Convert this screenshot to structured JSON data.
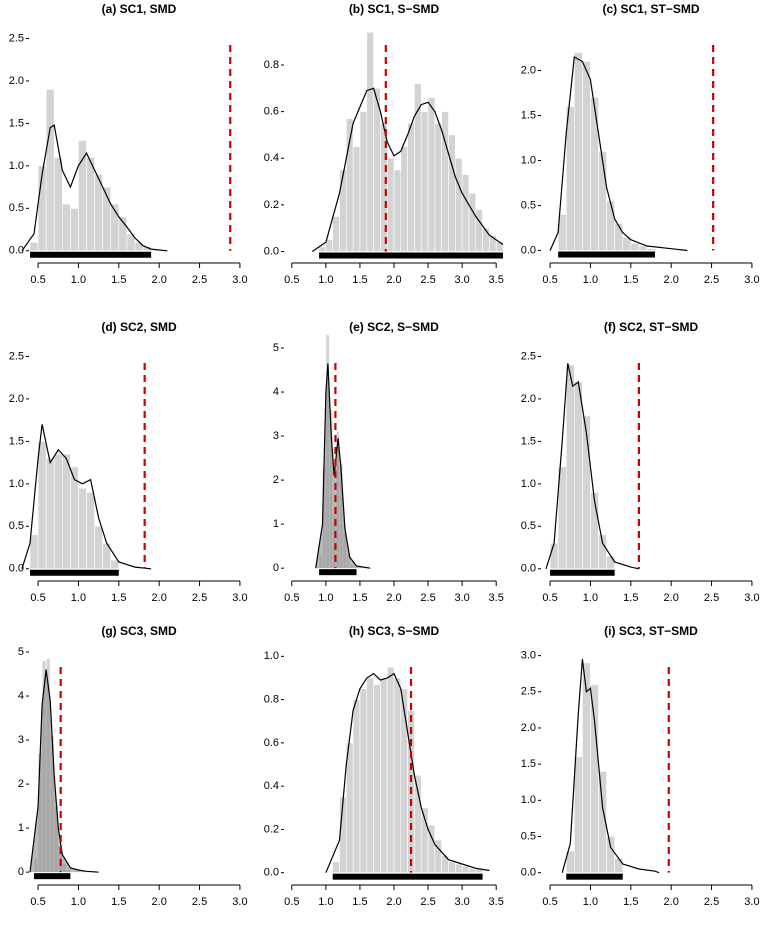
{
  "chart_data": [
    {
      "type": "histogram",
      "title": "(a) SC1, SMD",
      "bins": [
        0.4,
        0.5,
        0.6,
        0.7,
        0.8,
        0.9,
        1.0,
        1.1,
        1.2,
        1.3,
        1.4,
        1.5,
        1.6,
        1.7,
        1.8,
        1.9
      ],
      "values": [
        0.1,
        1.0,
        1.9,
        1.1,
        0.55,
        0.5,
        1.3,
        1.1,
        0.9,
        0.75,
        0.55,
        0.4,
        0.2,
        0.1,
        0.05
      ],
      "color": "#d3d3d3",
      "density": {
        "x": [
          0.3,
          0.45,
          0.55,
          0.65,
          0.7,
          0.8,
          0.9,
          1.0,
          1.1,
          1.2,
          1.3,
          1.4,
          1.5,
          1.6,
          1.7,
          1.8,
          1.9,
          2.1
        ],
        "y": [
          0,
          0.2,
          0.9,
          1.45,
          1.48,
          0.95,
          0.75,
          1.0,
          1.15,
          0.95,
          0.75,
          0.55,
          0.4,
          0.28,
          0.15,
          0.06,
          0.02,
          0
        ],
        "color": "#000000"
      },
      "reference_line": 2.88,
      "reference_color": "#cc0000",
      "xlim": [
        0.4,
        3.1
      ],
      "xticks": [
        0.5,
        {
          "value": 1,
          "label": "1.0"
        },
        1.5,
        {
          "value": 2,
          "label": "2.0"
        },
        2.5,
        {
          "value": 3,
          "label": "3.0"
        }
      ],
      "ylim": [
        -0.05,
        2.6
      ],
      "yticks": [
        {
          "value": 0,
          "label": "0.0"
        },
        0.5,
        {
          "value": 1,
          "label": "1.0"
        },
        1.5,
        {
          "value": 2,
          "label": "2.0"
        },
        2.5
      ]
    },
    {
      "type": "histogram",
      "title": "(b) SC1, S−SMD",
      "bins": [
        0.9,
        1.0,
        1.1,
        1.2,
        1.3,
        1.4,
        1.5,
        1.6,
        1.7,
        1.8,
        1.9,
        2.0,
        2.1,
        2.2,
        2.3,
        2.4,
        2.5,
        2.6,
        2.7,
        2.8,
        2.9,
        3.0,
        3.1,
        3.2,
        3.3,
        3.4,
        3.5,
        3.6
      ],
      "values": [
        0.02,
        0.05,
        0.15,
        0.35,
        0.57,
        0.45,
        0.6,
        0.94,
        0.7,
        0.55,
        0.4,
        0.35,
        0.45,
        0.55,
        0.72,
        0.6,
        0.66,
        0.55,
        0.6,
        0.5,
        0.4,
        0.33,
        0.25,
        0.18,
        0.1,
        0.07,
        0.04
      ],
      "color": "#d3d3d3",
      "density": {
        "x": [
          0.8,
          1.0,
          1.2,
          1.4,
          1.6,
          1.7,
          1.8,
          1.9,
          2.0,
          2.1,
          2.2,
          2.3,
          2.4,
          2.5,
          2.6,
          2.7,
          2.8,
          2.9,
          3.0,
          3.2,
          3.4,
          3.6
        ],
        "y": [
          0,
          0.04,
          0.25,
          0.55,
          0.69,
          0.7,
          0.6,
          0.47,
          0.41,
          0.43,
          0.5,
          0.58,
          0.63,
          0.64,
          0.6,
          0.52,
          0.42,
          0.32,
          0.25,
          0.15,
          0.07,
          0.03
        ],
        "color": "#000000"
      },
      "reference_line": 1.88,
      "reference_color": "#cc0000",
      "xlim": [
        0.4,
        3.6
      ],
      "xticks": [
        0.5,
        {
          "value": 1,
          "label": "1.0"
        },
        1.5,
        {
          "value": 2,
          "label": "2.0"
        },
        2.5,
        {
          "value": 3,
          "label": "3.0"
        },
        3.5
      ],
      "ylim": [
        -0.015,
        0.95
      ],
      "yticks": [
        {
          "value": 0,
          "label": "0.0"
        },
        0.2,
        0.4,
        0.6,
        0.8
      ]
    },
    {
      "type": "histogram",
      "title": "(c) SC1, ST−SMD",
      "bins": [
        0.6,
        0.7,
        0.8,
        0.9,
        1.0,
        1.1,
        1.2,
        1.3,
        1.4,
        1.5,
        1.6,
        1.7,
        1.8
      ],
      "values": [
        0.4,
        1.6,
        2.2,
        2.1,
        1.7,
        1.1,
        0.55,
        0.3,
        0.15,
        0.08,
        0.05,
        0.02
      ],
      "color": "#d3d3d3",
      "density": {
        "x": [
          0.5,
          0.6,
          0.7,
          0.8,
          0.9,
          1.0,
          1.1,
          1.2,
          1.3,
          1.4,
          1.5,
          1.7,
          2.0,
          2.2
        ],
        "y": [
          0,
          0.2,
          1.3,
          2.15,
          2.1,
          1.9,
          1.3,
          0.7,
          0.35,
          0.2,
          0.12,
          0.05,
          0.02,
          0
        ],
        "color": "#000000"
      },
      "reference_line": 2.52,
      "reference_color": "#cc0000",
      "xlim": [
        0.4,
        3.1
      ],
      "xticks": [
        0.5,
        {
          "value": 1,
          "label": "1.0"
        },
        1.5,
        {
          "value": 2,
          "label": "2.0"
        },
        2.5,
        {
          "value": 3,
          "label": "3.0"
        }
      ],
      "ylim": [
        -0.05,
        2.45
      ],
      "yticks": [
        {
          "value": 0,
          "label": "0.0"
        },
        0.5,
        {
          "value": 1,
          "label": "1.0"
        },
        1.5,
        {
          "value": 2,
          "label": "2.0"
        }
      ]
    },
    {
      "type": "histogram",
      "title": "(d) SC2, SMD",
      "bins": [
        0.4,
        0.5,
        0.6,
        0.7,
        0.8,
        0.9,
        1.0,
        1.1,
        1.2,
        1.3,
        1.4,
        1.5
      ],
      "values": [
        0.4,
        1.5,
        1.3,
        1.35,
        1.35,
        1.2,
        0.95,
        0.9,
        0.5,
        0.3,
        0.1
      ],
      "color": "#d3d3d3",
      "density": {
        "x": [
          0.3,
          0.4,
          0.5,
          0.55,
          0.65,
          0.75,
          0.85,
          0.95,
          1.05,
          1.15,
          1.25,
          1.35,
          1.5,
          1.7,
          1.9
        ],
        "y": [
          0,
          0.3,
          1.3,
          1.7,
          1.25,
          1.4,
          1.3,
          1.05,
          1.0,
          1.05,
          0.6,
          0.3,
          0.08,
          0.02,
          0
        ],
        "color": "#000000"
      },
      "reference_line": 1.82,
      "reference_color": "#cc0000",
      "xlim": [
        0.4,
        3.1
      ],
      "xticks": [
        0.5,
        {
          "value": 1,
          "label": "1.0"
        },
        1.5,
        {
          "value": 2,
          "label": "2.0"
        },
        2.5,
        {
          "value": 3,
          "label": "3.0"
        }
      ],
      "ylim": [
        -0.05,
        2.6
      ],
      "yticks": [
        {
          "value": 0,
          "label": "0.0"
        },
        0.5,
        {
          "value": 1,
          "label": "1.0"
        },
        1.5,
        {
          "value": 2,
          "label": "2.0"
        },
        2.5
      ]
    },
    {
      "type": "histogram",
      "title": "(e) SC2, S−SMD",
      "bins": [
        0.9,
        0.95,
        1.0,
        1.05,
        1.1,
        1.15,
        1.2,
        1.25,
        1.3,
        1.35,
        1.4,
        1.45
      ],
      "values": [
        0.3,
        2.3,
        5.3,
        3.6,
        1.2,
        3.1,
        2.4,
        0.8,
        0.3,
        0.1,
        0.05
      ],
      "color": "#d3d3d3",
      "density": {
        "x": [
          0.85,
          0.95,
          1.0,
          1.03,
          1.08,
          1.12,
          1.18,
          1.22,
          1.28,
          1.35,
          1.45,
          1.65
        ],
        "y": [
          0,
          1.0,
          4.0,
          4.65,
          3.0,
          2.1,
          2.95,
          2.3,
          0.9,
          0.25,
          0.05,
          0
        ],
        "color": "#000000",
        "fill": "#8c8c8c"
      },
      "reference_line": 1.14,
      "reference_color": "#cc0000",
      "xlim": [
        0.4,
        3.6
      ],
      "xticks": [
        0.5,
        {
          "value": 1,
          "label": "1.0"
        },
        1.5,
        {
          "value": 2,
          "label": "2.0"
        },
        2.5,
        {
          "value": 3,
          "label": "3.0"
        },
        3.5
      ],
      "ylim": [
        -0.11,
        5.0
      ],
      "yticks": [
        0,
        1,
        2,
        3,
        4,
        5
      ]
    },
    {
      "type": "histogram",
      "title": "(f) SC2, ST−SMD",
      "bins": [
        0.5,
        0.6,
        0.7,
        0.8,
        0.9,
        1.0,
        1.1,
        1.2,
        1.3
      ],
      "values": [
        0.3,
        1.2,
        2.4,
        2.2,
        1.8,
        0.9,
        0.4,
        0.15
      ],
      "color": "#d3d3d3",
      "density": {
        "x": [
          0.45,
          0.55,
          0.65,
          0.72,
          0.78,
          0.85,
          0.95,
          1.05,
          1.15,
          1.3,
          1.5,
          1.6
        ],
        "y": [
          0,
          0.3,
          1.5,
          2.42,
          2.15,
          2.2,
          1.6,
          0.8,
          0.3,
          0.08,
          0.02,
          0
        ],
        "color": "#000000"
      },
      "reference_line": 1.6,
      "reference_color": "#cc0000",
      "xlim": [
        0.4,
        3.1
      ],
      "xticks": [
        0.5,
        {
          "value": 1,
          "label": "1.0"
        },
        1.5,
        {
          "value": 2,
          "label": "2.0"
        },
        2.5,
        {
          "value": 3,
          "label": "3.0"
        }
      ],
      "ylim": [
        -0.05,
        2.6
      ],
      "yticks": [
        {
          "value": 0,
          "label": "0.0"
        },
        0.5,
        {
          "value": 1,
          "label": "1.0"
        },
        1.5,
        {
          "value": 2,
          "label": "2.0"
        },
        2.5
      ]
    },
    {
      "type": "histogram",
      "title": "(g) SC3, SMD",
      "bins": [
        0.45,
        0.5,
        0.55,
        0.6,
        0.65,
        0.7,
        0.75,
        0.8,
        0.85,
        0.9
      ],
      "values": [
        0.3,
        2.7,
        4.8,
        4.85,
        3.1,
        1.5,
        0.6,
        0.2,
        0.05
      ],
      "color": "#d3d3d3",
      "density": {
        "x": [
          0.4,
          0.5,
          0.55,
          0.6,
          0.65,
          0.7,
          0.75,
          0.8,
          0.9,
          1.0,
          1.1,
          1.25
        ],
        "y": [
          0,
          1.5,
          3.8,
          4.6,
          3.9,
          2.2,
          1.0,
          0.4,
          0.1,
          0.05,
          0.02,
          0
        ],
        "color": "#000000",
        "fill": "#8c8c8c"
      },
      "reference_line": 0.78,
      "reference_color": "#cc0000",
      "xlim": [
        0.4,
        3.1
      ],
      "xticks": [
        0.5,
        {
          "value": 1,
          "label": "1.0"
        },
        1.5,
        {
          "value": 2,
          "label": "2.0"
        },
        2.5,
        {
          "value": 3,
          "label": "3.0"
        }
      ],
      "ylim": [
        -0.11,
        5.0
      ],
      "yticks": [
        0,
        1,
        2,
        3,
        4,
        5
      ]
    },
    {
      "type": "histogram",
      "title": "(h) SC3, S−SMD",
      "bins": [
        1.1,
        1.2,
        1.3,
        1.4,
        1.5,
        1.6,
        1.7,
        1.8,
        1.9,
        2.0,
        2.1,
        2.2,
        2.3,
        2.4,
        2.5,
        2.6,
        2.7,
        2.8,
        2.9,
        3.0,
        3.1,
        3.2,
        3.3
      ],
      "values": [
        0.05,
        0.35,
        0.6,
        0.8,
        0.85,
        0.9,
        0.87,
        0.9,
        0.95,
        0.9,
        0.85,
        0.75,
        0.45,
        0.3,
        0.22,
        0.15,
        0.08,
        0.05,
        0.04,
        0.03,
        0.02,
        0.02
      ],
      "color": "#d3d3d3",
      "density": {
        "x": [
          1.0,
          1.2,
          1.3,
          1.4,
          1.5,
          1.6,
          1.7,
          1.8,
          1.9,
          2.0,
          2.1,
          2.2,
          2.3,
          2.4,
          2.5,
          2.6,
          2.8,
          3.0,
          3.2,
          3.4
        ],
        "y": [
          0,
          0.15,
          0.5,
          0.75,
          0.85,
          0.9,
          0.92,
          0.89,
          0.9,
          0.92,
          0.85,
          0.65,
          0.45,
          0.3,
          0.2,
          0.13,
          0.06,
          0.04,
          0.02,
          0.01
        ],
        "color": "#000000"
      },
      "reference_line": 2.25,
      "reference_color": "#cc0000",
      "xlim": [
        0.4,
        3.6
      ],
      "xticks": [
        0.5,
        {
          "value": 1,
          "label": "1.0"
        },
        1.5,
        {
          "value": 2,
          "label": "2.0"
        },
        2.5,
        {
          "value": 3,
          "label": "3.0"
        },
        3.5
      ],
      "ylim": [
        -0.02,
        1.02
      ],
      "yticks": [
        {
          "value": 0,
          "label": "0.0"
        },
        0.2,
        0.4,
        0.6,
        0.8,
        {
          "value": 1,
          "label": "1.0"
        }
      ]
    },
    {
      "type": "histogram",
      "title": "(i) SC3, ST−SMD",
      "bins": [
        0.7,
        0.8,
        0.9,
        1.0,
        1.1,
        1.2,
        1.3,
        1.4
      ],
      "values": [
        0.3,
        1.6,
        2.9,
        2.6,
        1.4,
        0.5,
        0.2
      ],
      "color": "#d3d3d3",
      "density": {
        "x": [
          0.65,
          0.75,
          0.85,
          0.9,
          0.95,
          1.0,
          1.05,
          1.15,
          1.25,
          1.4,
          1.6,
          1.8,
          1.85
        ],
        "y": [
          0,
          0.4,
          2.2,
          2.95,
          2.5,
          2.55,
          2.1,
          0.9,
          0.35,
          0.12,
          0.05,
          0.02,
          0
        ],
        "color": "#000000"
      },
      "reference_line": 1.97,
      "reference_color": "#cc0000",
      "xlim": [
        0.4,
        3.1
      ],
      "xticks": [
        0.5,
        {
          "value": 1,
          "label": "1.0"
        },
        1.5,
        {
          "value": 2,
          "label": "2.0"
        },
        2.5,
        {
          "value": 3,
          "label": "3.0"
        }
      ],
      "ylim": [
        -0.06,
        3.05
      ],
      "yticks": [
        {
          "value": 0,
          "label": "0.0"
        },
        0.5,
        {
          "value": 1,
          "label": "1.0"
        },
        1.5,
        {
          "value": 2,
          "label": "2.0"
        },
        2.5,
        {
          "value": 3,
          "label": "3.0"
        }
      ]
    }
  ]
}
